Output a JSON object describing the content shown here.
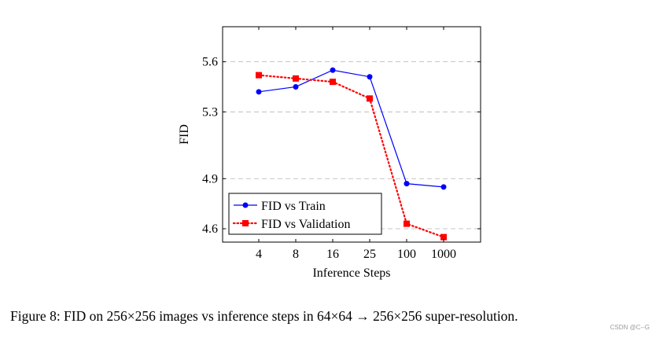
{
  "chart_data": {
    "type": "line",
    "categories": [
      "4",
      "8",
      "16",
      "25",
      "100",
      "1000"
    ],
    "series": [
      {
        "name": "FID vs Train",
        "color": "#0000ff",
        "marker": "circle",
        "line_style": "solid",
        "values": [
          5.42,
          5.45,
          5.55,
          5.51,
          4.87,
          4.85
        ]
      },
      {
        "name": "FID vs Validation",
        "color": "#ff0000",
        "marker": "square",
        "line_style": "dotted",
        "values": [
          5.52,
          5.5,
          5.48,
          5.38,
          4.63,
          4.55
        ]
      }
    ],
    "title": "",
    "xlabel": "Inference Steps",
    "ylabel": "FID",
    "ylim": [
      4.52,
      5.81
    ],
    "yticks": [
      4.6,
      4.9,
      5.3,
      5.6
    ],
    "ytick_labels": [
      "4.6",
      "4.9",
      "5.3",
      "5.6"
    ],
    "grid": "horizontal-dashed",
    "legend_position": "bottom-left"
  },
  "caption": "Figure 8: FID on 256×256 images vs inference steps in 64×64 → 256×256 super-resolution.",
  "watermark": "CSDN @C--G"
}
